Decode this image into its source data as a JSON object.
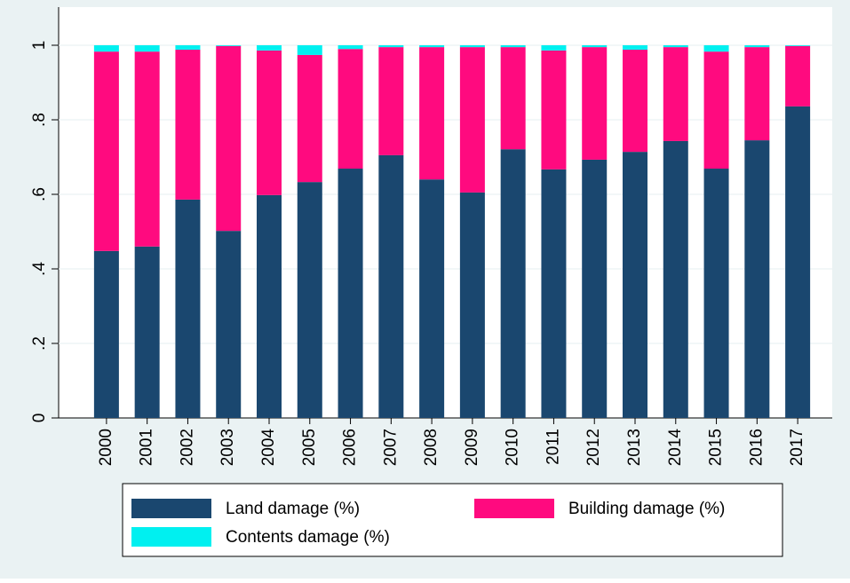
{
  "chart_data": {
    "type": "stacked_bar",
    "categories": [
      "2000",
      "2001",
      "2002",
      "2003",
      "2004",
      "2005",
      "2006",
      "2007",
      "2008",
      "2009",
      "2010",
      "2011",
      "2012",
      "2013",
      "2014",
      "2015",
      "2016",
      "2017"
    ],
    "series": [
      {
        "name": "Land damage (%)",
        "color": "#1a476f",
        "values": [
          0.448,
          0.46,
          0.586,
          0.502,
          0.598,
          0.633,
          0.669,
          0.705,
          0.64,
          0.605,
          0.721,
          0.667,
          0.693,
          0.714,
          0.743,
          0.669,
          0.745,
          0.836
        ]
      },
      {
        "name": "Building damage (%)",
        "color": "#ff0a7f",
        "values": [
          0.535,
          0.523,
          0.402,
          0.496,
          0.388,
          0.341,
          0.321,
          0.29,
          0.355,
          0.39,
          0.274,
          0.319,
          0.302,
          0.274,
          0.252,
          0.314,
          0.25,
          0.162
        ]
      },
      {
        "name": "Contents damage (%)",
        "color": "#00f0f0",
        "values": [
          0.017,
          0.017,
          0.012,
          0.002,
          0.014,
          0.026,
          0.01,
          0.005,
          0.005,
          0.005,
          0.005,
          0.014,
          0.005,
          0.012,
          0.005,
          0.017,
          0.005,
          0.002
        ]
      }
    ],
    "ylim": [
      0,
      1
    ],
    "yticks": [
      0,
      {
        "value": 0.2,
        "label": ".2"
      },
      {
        "value": 0.4,
        "label": ".4"
      },
      {
        "value": 0.6,
        "label": ".6"
      },
      {
        "value": 0.8,
        "label": ".8"
      },
      1
    ],
    "grid": true
  }
}
